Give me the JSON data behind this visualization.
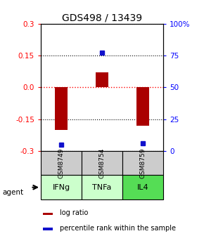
{
  "title": "GDS498 / 13439",
  "samples": [
    "GSM8749",
    "GSM8754",
    "GSM8759"
  ],
  "agents": [
    "IFNg",
    "TNFa",
    "IL4"
  ],
  "log_ratios": [
    -0.2,
    0.07,
    -0.18
  ],
  "percentile_ranks": [
    5,
    77,
    6
  ],
  "ylim": [
    -0.3,
    0.3
  ],
  "yticks_left": [
    -0.3,
    -0.15,
    0.0,
    0.15,
    0.3
  ],
  "yticks_right": [
    0,
    25,
    50,
    75,
    100
  ],
  "bar_color": "#aa0000",
  "dot_color": "#1111cc",
  "agent_colors": [
    "#ccffcc",
    "#ccffcc",
    "#55dd55"
  ],
  "sample_bg": "#cccccc",
  "title_fontsize": 10,
  "tick_fontsize": 7.5,
  "bar_width": 0.32
}
